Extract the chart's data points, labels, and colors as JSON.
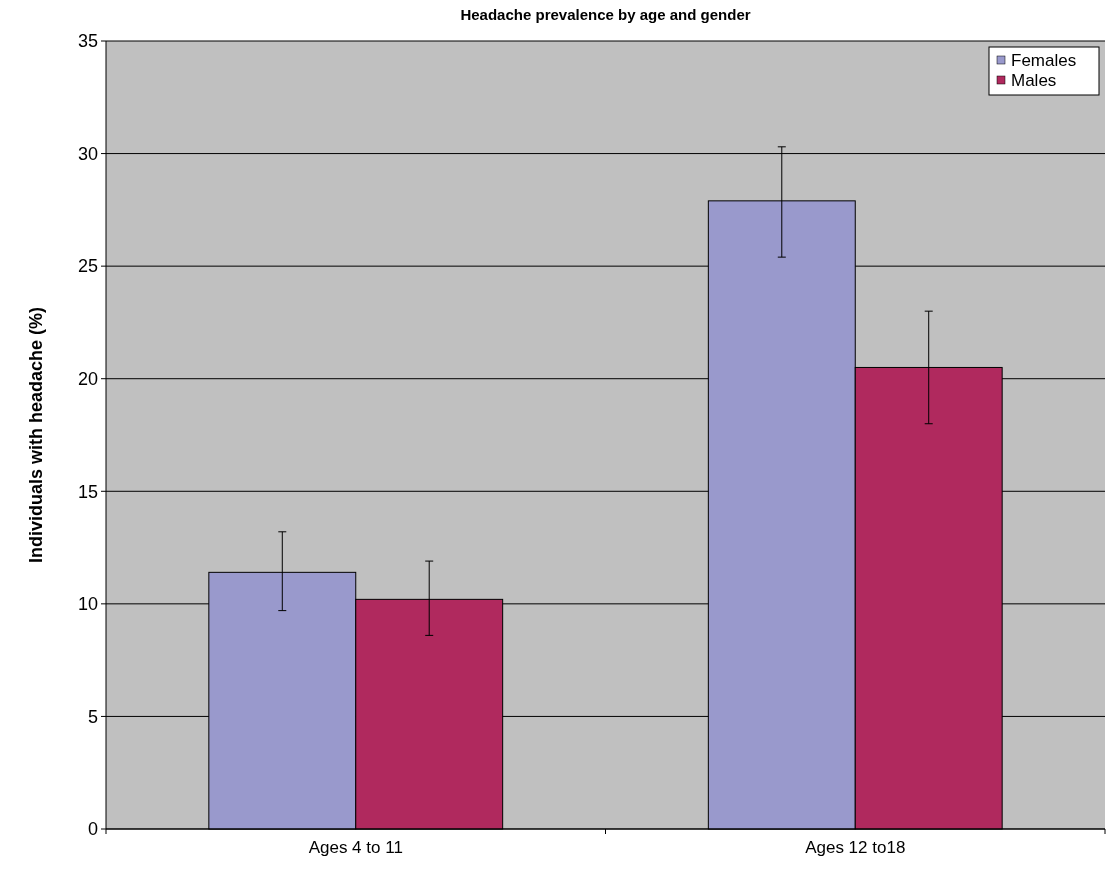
{
  "chart_data": {
    "type": "bar",
    "title": "Headache prevalence by age and gender",
    "ylabel": "Individuals with headache (%)",
    "categories": [
      "Ages 4 to 11",
      "Ages 12 to18"
    ],
    "series": [
      {
        "name": "Females",
        "color": "#9999cc",
        "values": [
          11.4,
          27.9
        ],
        "errors": [
          [
            9.7,
            13.2
          ],
          [
            25.4,
            30.3
          ]
        ]
      },
      {
        "name": "Males",
        "color": "#b0295e",
        "values": [
          10.2,
          20.5
        ],
        "errors": [
          [
            8.6,
            11.9
          ],
          [
            18.0,
            23.0
          ]
        ]
      }
    ],
    "ylim": [
      0,
      35
    ],
    "yticks": [
      0,
      5,
      10,
      15,
      20,
      25,
      30,
      35
    ],
    "grid": "y",
    "legend": "top right"
  }
}
